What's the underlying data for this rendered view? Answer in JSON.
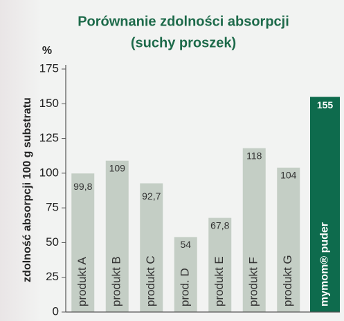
{
  "chart_data": {
    "type": "bar",
    "title": [
      "Porównanie zdolności absorpcji",
      "(suchy proszek)"
    ],
    "y_unit": "%",
    "y_label": "zdolność absorpcji 100 g substratu",
    "categories": [
      "produkt A",
      "produkt B",
      "produkt C",
      "prod. D",
      "produkt E",
      "produkt F",
      "produkt G",
      "mymom® puder"
    ],
    "values": [
      99.8,
      109,
      92.7,
      54,
      67.8,
      118,
      104,
      155
    ],
    "value_labels": [
      "99,8",
      "109",
      "92,7",
      "54",
      "67,8",
      "118",
      "104",
      "155"
    ],
    "colors": [
      "#c4cec5",
      "#c4cec5",
      "#c4cec5",
      "#c4cec5",
      "#c4cec5",
      "#c4cec5",
      "#c4cec5",
      "#0e6b4d"
    ],
    "ylim": [
      0,
      175
    ],
    "yticks": [
      0,
      25,
      50,
      75,
      100,
      125,
      150,
      175
    ],
    "grid": false
  }
}
